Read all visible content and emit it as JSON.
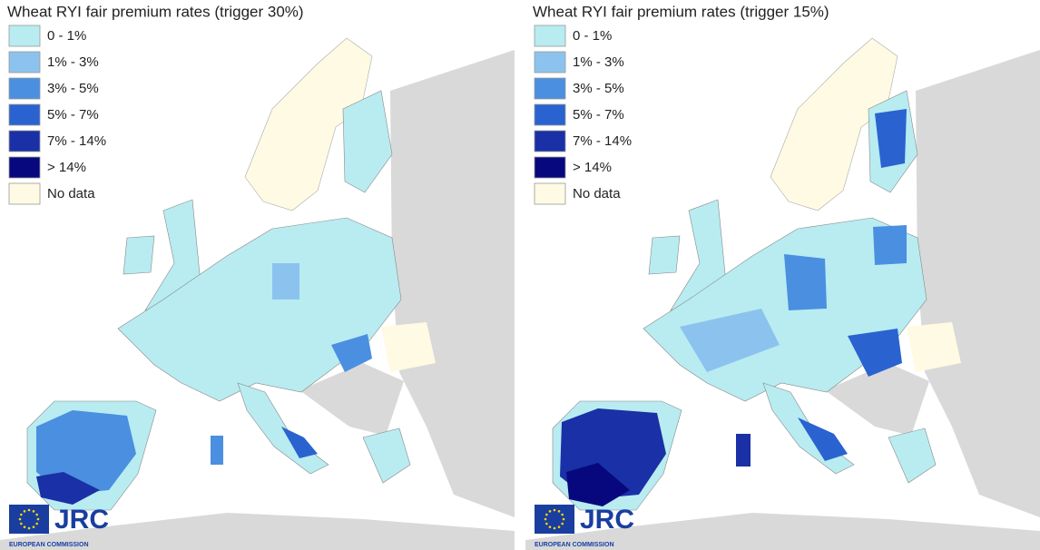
{
  "panels": [
    {
      "title": "Wheat RYI fair premium rates (trigger 30%)",
      "legend": [
        {
          "label": "0 - 1%",
          "color": "#b8ecf1"
        },
        {
          "label": "1% - 3%",
          "color": "#8cc3ee"
        },
        {
          "label": "3% - 5%",
          "color": "#4b8fe0"
        },
        {
          "label": "5% - 7%",
          "color": "#2a63d0"
        },
        {
          "label": "7% - 14%",
          "color": "#1a30a6"
        },
        {
          "label": "> 14%",
          "color": "#08087e"
        },
        {
          "label": "No data",
          "color": "#fffae3"
        }
      ],
      "logo": {
        "name": "JRC",
        "subtitle": "EUROPEAN COMMISSION"
      }
    },
    {
      "title": "Wheat RYI fair premium rates (trigger 15%)",
      "legend": [
        {
          "label": "0 - 1%",
          "color": "#b8ecf1"
        },
        {
          "label": "1% - 3%",
          "color": "#8cc3ee"
        },
        {
          "label": "3% - 5%",
          "color": "#4b8fe0"
        },
        {
          "label": "5% - 7%",
          "color": "#2a63d0"
        },
        {
          "label": "7% - 14%",
          "color": "#1a30a6"
        },
        {
          "label": "> 14%",
          "color": "#08087e"
        },
        {
          "label": "No data",
          "color": "#fffae3"
        }
      ],
      "logo": {
        "name": "JRC",
        "subtitle": "EUROPEAN COMMISSION"
      }
    }
  ]
}
